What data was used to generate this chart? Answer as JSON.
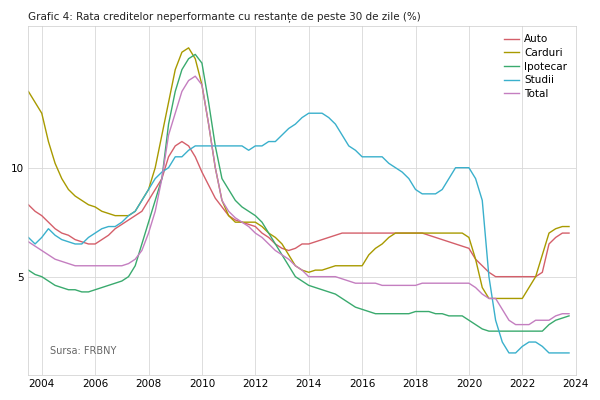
{
  "title": "Grafic 4: Rata creditelor neperformante cu restanțe de peste 30 de zile (%)",
  "source": "Sursa: FRBNY",
  "legend_labels": [
    "Auto",
    "Carduri",
    "Ipotecar",
    "Studii",
    "Total"
  ],
  "colors": {
    "Auto": "#d45f6a",
    "Carduri": "#a89a00",
    "Ipotecar": "#3aaa6e",
    "Studii": "#3ab0cc",
    "Total": "#c47ec0"
  },
  "xlim": [
    2003.5,
    2024.0
  ],
  "ylim": [
    0.5,
    16.5
  ],
  "yticks": [
    5,
    10
  ],
  "xticks": [
    2004,
    2006,
    2008,
    2010,
    2012,
    2014,
    2016,
    2018,
    2020,
    2022,
    2024
  ],
  "data": {
    "Auto": {
      "x": [
        2003.5,
        2003.75,
        2004.0,
        2004.25,
        2004.5,
        2004.75,
        2005.0,
        2005.25,
        2005.5,
        2005.75,
        2006.0,
        2006.25,
        2006.5,
        2006.75,
        2007.0,
        2007.25,
        2007.5,
        2007.75,
        2008.0,
        2008.25,
        2008.5,
        2008.75,
        2009.0,
        2009.25,
        2009.5,
        2009.75,
        2010.0,
        2010.25,
        2010.5,
        2010.75,
        2011.0,
        2011.25,
        2011.5,
        2011.75,
        2012.0,
        2012.25,
        2012.5,
        2012.75,
        2013.0,
        2013.25,
        2013.5,
        2013.75,
        2014.0,
        2014.25,
        2014.5,
        2014.75,
        2015.0,
        2015.25,
        2015.5,
        2015.75,
        2016.0,
        2016.25,
        2016.5,
        2016.75,
        2017.0,
        2017.25,
        2017.5,
        2017.75,
        2018.0,
        2018.25,
        2018.5,
        2018.75,
        2019.0,
        2019.25,
        2019.5,
        2019.75,
        2020.0,
        2020.25,
        2020.5,
        2020.75,
        2021.0,
        2021.25,
        2021.5,
        2021.75,
        2022.0,
        2022.25,
        2022.5,
        2022.75,
        2023.0,
        2023.25,
        2023.5,
        2023.75
      ],
      "y": [
        8.3,
        8.0,
        7.8,
        7.5,
        7.2,
        7.0,
        6.9,
        6.7,
        6.6,
        6.5,
        6.5,
        6.7,
        6.9,
        7.2,
        7.4,
        7.6,
        7.8,
        8.0,
        8.5,
        9.0,
        9.5,
        10.5,
        11.0,
        11.2,
        11.0,
        10.5,
        9.8,
        9.2,
        8.6,
        8.2,
        7.8,
        7.6,
        7.5,
        7.4,
        7.3,
        7.0,
        6.8,
        6.5,
        6.3,
        6.2,
        6.3,
        6.5,
        6.5,
        6.6,
        6.7,
        6.8,
        6.9,
        7.0,
        7.0,
        7.0,
        7.0,
        7.0,
        7.0,
        7.0,
        7.0,
        7.0,
        7.0,
        7.0,
        7.0,
        7.0,
        6.9,
        6.8,
        6.7,
        6.6,
        6.5,
        6.4,
        6.3,
        5.8,
        5.5,
        5.2,
        5.0,
        5.0,
        5.0,
        5.0,
        5.0,
        5.0,
        5.0,
        5.2,
        6.5,
        6.8,
        7.0,
        7.0
      ]
    },
    "Carduri": {
      "x": [
        2003.5,
        2003.75,
        2004.0,
        2004.25,
        2004.5,
        2004.75,
        2005.0,
        2005.25,
        2005.5,
        2005.75,
        2006.0,
        2006.25,
        2006.5,
        2006.75,
        2007.0,
        2007.25,
        2007.5,
        2007.75,
        2008.0,
        2008.25,
        2008.5,
        2008.75,
        2009.0,
        2009.25,
        2009.5,
        2009.75,
        2010.0,
        2010.25,
        2010.5,
        2010.75,
        2011.0,
        2011.25,
        2011.5,
        2011.75,
        2012.0,
        2012.25,
        2012.5,
        2012.75,
        2013.0,
        2013.25,
        2013.5,
        2013.75,
        2014.0,
        2014.25,
        2014.5,
        2014.75,
        2015.0,
        2015.25,
        2015.5,
        2015.75,
        2016.0,
        2016.25,
        2016.5,
        2016.75,
        2017.0,
        2017.25,
        2017.5,
        2017.75,
        2018.0,
        2018.25,
        2018.5,
        2018.75,
        2019.0,
        2019.25,
        2019.5,
        2019.75,
        2020.0,
        2020.25,
        2020.5,
        2020.75,
        2021.0,
        2021.25,
        2021.5,
        2021.75,
        2022.0,
        2022.25,
        2022.5,
        2022.75,
        2023.0,
        2023.25,
        2023.5,
        2023.75
      ],
      "y": [
        13.5,
        13.0,
        12.5,
        11.2,
        10.2,
        9.5,
        9.0,
        8.7,
        8.5,
        8.3,
        8.2,
        8.0,
        7.9,
        7.8,
        7.8,
        7.8,
        8.0,
        8.5,
        9.0,
        10.0,
        11.5,
        13.0,
        14.5,
        15.3,
        15.5,
        15.0,
        13.8,
        12.0,
        10.0,
        8.5,
        7.8,
        7.5,
        7.5,
        7.5,
        7.5,
        7.3,
        7.0,
        6.8,
        6.5,
        6.0,
        5.5,
        5.3,
        5.2,
        5.3,
        5.3,
        5.4,
        5.5,
        5.5,
        5.5,
        5.5,
        5.5,
        6.0,
        6.3,
        6.5,
        6.8,
        7.0,
        7.0,
        7.0,
        7.0,
        7.0,
        7.0,
        7.0,
        7.0,
        7.0,
        7.0,
        7.0,
        6.8,
        5.8,
        4.5,
        4.0,
        4.0,
        4.0,
        4.0,
        4.0,
        4.0,
        4.5,
        5.0,
        6.0,
        7.0,
        7.2,
        7.3,
        7.3
      ]
    },
    "Ipotecar": {
      "x": [
        2003.5,
        2003.75,
        2004.0,
        2004.25,
        2004.5,
        2004.75,
        2005.0,
        2005.25,
        2005.5,
        2005.75,
        2006.0,
        2006.25,
        2006.5,
        2006.75,
        2007.0,
        2007.25,
        2007.5,
        2007.75,
        2008.0,
        2008.25,
        2008.5,
        2008.75,
        2009.0,
        2009.25,
        2009.5,
        2009.75,
        2010.0,
        2010.25,
        2010.5,
        2010.75,
        2011.0,
        2011.25,
        2011.5,
        2011.75,
        2012.0,
        2012.25,
        2012.5,
        2012.75,
        2013.0,
        2013.25,
        2013.5,
        2013.75,
        2014.0,
        2014.25,
        2014.5,
        2014.75,
        2015.0,
        2015.25,
        2015.5,
        2015.75,
        2016.0,
        2016.25,
        2016.5,
        2016.75,
        2017.0,
        2017.25,
        2017.5,
        2017.75,
        2018.0,
        2018.25,
        2018.5,
        2018.75,
        2019.0,
        2019.25,
        2019.5,
        2019.75,
        2020.0,
        2020.25,
        2020.5,
        2020.75,
        2021.0,
        2021.25,
        2021.5,
        2021.75,
        2022.0,
        2022.25,
        2022.5,
        2022.75,
        2023.0,
        2023.25,
        2023.5,
        2023.75
      ],
      "y": [
        5.3,
        5.1,
        5.0,
        4.8,
        4.6,
        4.5,
        4.4,
        4.4,
        4.3,
        4.3,
        4.4,
        4.5,
        4.6,
        4.7,
        4.8,
        5.0,
        5.5,
        6.5,
        7.5,
        8.5,
        9.5,
        12.0,
        13.5,
        14.5,
        15.0,
        15.2,
        14.8,
        13.0,
        11.0,
        9.5,
        9.0,
        8.5,
        8.2,
        8.0,
        7.8,
        7.5,
        7.0,
        6.5,
        6.0,
        5.5,
        5.0,
        4.8,
        4.6,
        4.5,
        4.4,
        4.3,
        4.2,
        4.0,
        3.8,
        3.6,
        3.5,
        3.4,
        3.3,
        3.3,
        3.3,
        3.3,
        3.3,
        3.3,
        3.4,
        3.4,
        3.4,
        3.3,
        3.3,
        3.2,
        3.2,
        3.2,
        3.0,
        2.8,
        2.6,
        2.5,
        2.5,
        2.5,
        2.5,
        2.5,
        2.5,
        2.5,
        2.5,
        2.5,
        2.8,
        3.0,
        3.1,
        3.2
      ]
    },
    "Studii": {
      "x": [
        2003.5,
        2003.75,
        2004.0,
        2004.25,
        2004.5,
        2004.75,
        2005.0,
        2005.25,
        2005.5,
        2005.75,
        2006.0,
        2006.25,
        2006.5,
        2006.75,
        2007.0,
        2007.25,
        2007.5,
        2007.75,
        2008.0,
        2008.25,
        2008.5,
        2008.75,
        2009.0,
        2009.25,
        2009.5,
        2009.75,
        2010.0,
        2010.25,
        2010.5,
        2010.75,
        2011.0,
        2011.25,
        2011.5,
        2011.75,
        2012.0,
        2012.25,
        2012.5,
        2012.75,
        2013.0,
        2013.25,
        2013.5,
        2013.75,
        2014.0,
        2014.25,
        2014.5,
        2014.75,
        2015.0,
        2015.25,
        2015.5,
        2015.75,
        2016.0,
        2016.25,
        2016.5,
        2016.75,
        2017.0,
        2017.25,
        2017.5,
        2017.75,
        2018.0,
        2018.25,
        2018.5,
        2018.75,
        2019.0,
        2019.25,
        2019.5,
        2019.75,
        2020.0,
        2020.25,
        2020.5,
        2020.75,
        2021.0,
        2021.25,
        2021.5,
        2021.75,
        2022.0,
        2022.25,
        2022.5,
        2022.75,
        2023.0,
        2023.25,
        2023.5,
        2023.75
      ],
      "y": [
        6.8,
        6.5,
        6.8,
        7.2,
        6.9,
        6.7,
        6.6,
        6.5,
        6.5,
        6.8,
        7.0,
        7.2,
        7.3,
        7.3,
        7.5,
        7.8,
        8.0,
        8.5,
        9.0,
        9.5,
        9.8,
        10.0,
        10.5,
        10.5,
        10.8,
        11.0,
        11.0,
        11.0,
        11.0,
        11.0,
        11.0,
        11.0,
        11.0,
        10.8,
        11.0,
        11.0,
        11.2,
        11.2,
        11.5,
        11.8,
        12.0,
        12.3,
        12.5,
        12.5,
        12.5,
        12.3,
        12.0,
        11.5,
        11.0,
        10.8,
        10.5,
        10.5,
        10.5,
        10.5,
        10.2,
        10.0,
        9.8,
        9.5,
        9.0,
        8.8,
        8.8,
        8.8,
        9.0,
        9.5,
        10.0,
        10.0,
        10.0,
        9.5,
        8.5,
        5.0,
        3.0,
        2.0,
        1.5,
        1.5,
        1.8,
        2.0,
        2.0,
        1.8,
        1.5,
        1.5,
        1.5,
        1.5
      ]
    },
    "Total": {
      "x": [
        2003.5,
        2003.75,
        2004.0,
        2004.25,
        2004.5,
        2004.75,
        2005.0,
        2005.25,
        2005.5,
        2005.75,
        2006.0,
        2006.25,
        2006.5,
        2006.75,
        2007.0,
        2007.25,
        2007.5,
        2007.75,
        2008.0,
        2008.25,
        2008.5,
        2008.75,
        2009.0,
        2009.25,
        2009.5,
        2009.75,
        2010.0,
        2010.25,
        2010.5,
        2010.75,
        2011.0,
        2011.25,
        2011.5,
        2011.75,
        2012.0,
        2012.25,
        2012.5,
        2012.75,
        2013.0,
        2013.25,
        2013.5,
        2013.75,
        2014.0,
        2014.25,
        2014.5,
        2014.75,
        2015.0,
        2015.25,
        2015.5,
        2015.75,
        2016.0,
        2016.25,
        2016.5,
        2016.75,
        2017.0,
        2017.25,
        2017.5,
        2017.75,
        2018.0,
        2018.25,
        2018.5,
        2018.75,
        2019.0,
        2019.25,
        2019.5,
        2019.75,
        2020.0,
        2020.25,
        2020.5,
        2020.75,
        2021.0,
        2021.25,
        2021.5,
        2021.75,
        2022.0,
        2022.25,
        2022.5,
        2022.75,
        2023.0,
        2023.25,
        2023.5,
        2023.75
      ],
      "y": [
        6.6,
        6.4,
        6.2,
        6.0,
        5.8,
        5.7,
        5.6,
        5.5,
        5.5,
        5.5,
        5.5,
        5.5,
        5.5,
        5.5,
        5.5,
        5.6,
        5.8,
        6.2,
        7.0,
        8.0,
        9.5,
        11.5,
        12.5,
        13.5,
        14.0,
        14.2,
        13.8,
        12.0,
        10.0,
        8.5,
        8.0,
        7.7,
        7.5,
        7.3,
        7.0,
        6.8,
        6.5,
        6.2,
        6.0,
        5.8,
        5.5,
        5.3,
        5.0,
        5.0,
        5.0,
        5.0,
        5.0,
        4.9,
        4.8,
        4.7,
        4.7,
        4.7,
        4.7,
        4.6,
        4.6,
        4.6,
        4.6,
        4.6,
        4.6,
        4.7,
        4.7,
        4.7,
        4.7,
        4.7,
        4.7,
        4.7,
        4.7,
        4.5,
        4.2,
        4.0,
        4.0,
        3.5,
        3.0,
        2.8,
        2.8,
        2.8,
        3.0,
        3.0,
        3.0,
        3.2,
        3.3,
        3.3
      ]
    }
  }
}
